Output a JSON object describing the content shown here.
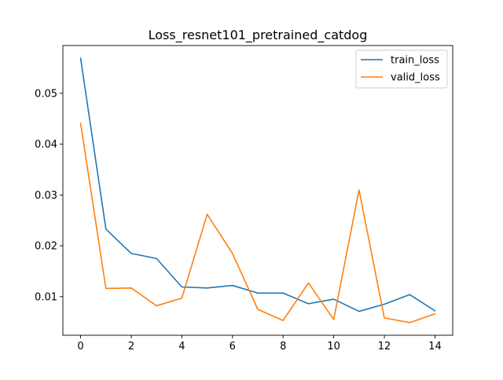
{
  "chart_data": {
    "type": "line",
    "title": "Loss_resnet101_pretrained_catdog",
    "xlabel": "",
    "ylabel": "",
    "x": [
      0,
      1,
      2,
      3,
      4,
      5,
      6,
      7,
      8,
      9,
      10,
      11,
      12,
      13,
      14
    ],
    "xticks": [
      0,
      2,
      4,
      6,
      8,
      10,
      12,
      14
    ],
    "yticks": [
      0.01,
      0.02,
      0.03,
      0.04,
      0.05
    ],
    "ytick_labels": [
      "0.01",
      "0.02",
      "0.03",
      "0.04",
      "0.05"
    ],
    "xlim": [
      -0.7,
      14.7
    ],
    "ylim": [
      0.0024,
      0.0594
    ],
    "grid": false,
    "legend_position": "upper right",
    "series": [
      {
        "name": "train_loss",
        "color": "#1f77b4",
        "values": [
          0.0569,
          0.0233,
          0.0185,
          0.0175,
          0.0119,
          0.0117,
          0.0122,
          0.0107,
          0.0107,
          0.0086,
          0.0095,
          0.0071,
          0.0085,
          0.0104,
          0.0072
        ]
      },
      {
        "name": "valid_loss",
        "color": "#ff7f0e",
        "values": [
          0.0441,
          0.0116,
          0.0117,
          0.0082,
          0.0097,
          0.0262,
          0.0185,
          0.0075,
          0.0053,
          0.0127,
          0.0055,
          0.031,
          0.0058,
          0.0049,
          0.0066
        ]
      }
    ]
  }
}
